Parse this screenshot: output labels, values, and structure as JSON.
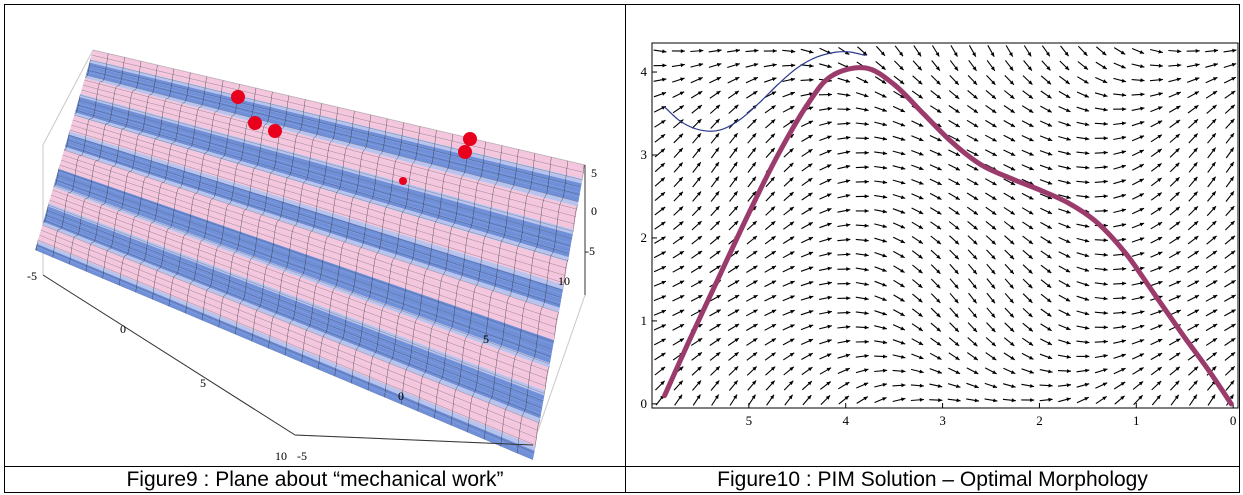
{
  "figure9": {
    "caption": "Figure9 : Plane about “mechanical work”",
    "axis_ticks": {
      "x": [
        "-5",
        "0",
        "5",
        "10"
      ],
      "y": [
        "-5",
        "0",
        "5",
        "10"
      ],
      "z": [
        "5",
        "0",
        "-5"
      ]
    },
    "surface_colors": {
      "low": "#6f8fd8",
      "high": "#f3c6dd",
      "mesh": "#2a2a2a"
    },
    "markers_color": "#e8001c"
  },
  "figure10": {
    "caption": "Figure10 : PIM Solution – Optimal Morphology",
    "chart_data": {
      "type": "line",
      "x_reversed": true,
      "xlim": [
        6.0,
        -0.05
      ],
      "ylim": [
        -0.05,
        4.35
      ],
      "x_ticks": [
        "5",
        "4",
        "3",
        "2",
        "1",
        "0"
      ],
      "y_ticks": [
        "0",
        "1",
        "2",
        "3",
        "4"
      ],
      "series": [
        {
          "style": "thick",
          "color": "#9b3b6c",
          "x": [
            5.87,
            5.6,
            5.3,
            5.0,
            4.7,
            4.4,
            4.15,
            3.8,
            3.5,
            3.2,
            2.9,
            2.6,
            2.3,
            2.0,
            1.7,
            1.4,
            1.1,
            0.8,
            0.5,
            0.25,
            0.02
          ],
          "y": [
            0.1,
            0.8,
            1.55,
            2.3,
            3.0,
            3.6,
            3.95,
            4.05,
            3.85,
            3.5,
            3.15,
            2.88,
            2.72,
            2.58,
            2.42,
            2.18,
            1.8,
            1.3,
            0.8,
            0.4,
            0.0
          ]
        },
        {
          "style": "thin",
          "color": "#2b3a8c",
          "x": [
            5.87,
            5.7,
            5.5,
            5.3,
            5.1,
            4.9,
            4.7,
            4.5,
            4.3,
            4.1,
            3.95,
            3.8
          ],
          "y": [
            3.58,
            3.4,
            3.3,
            3.3,
            3.42,
            3.62,
            3.85,
            4.05,
            4.18,
            4.24,
            4.24,
            4.2
          ]
        }
      ],
      "vector_field": {
        "color": "#000000",
        "columns": 32,
        "rows": 25
      }
    }
  }
}
